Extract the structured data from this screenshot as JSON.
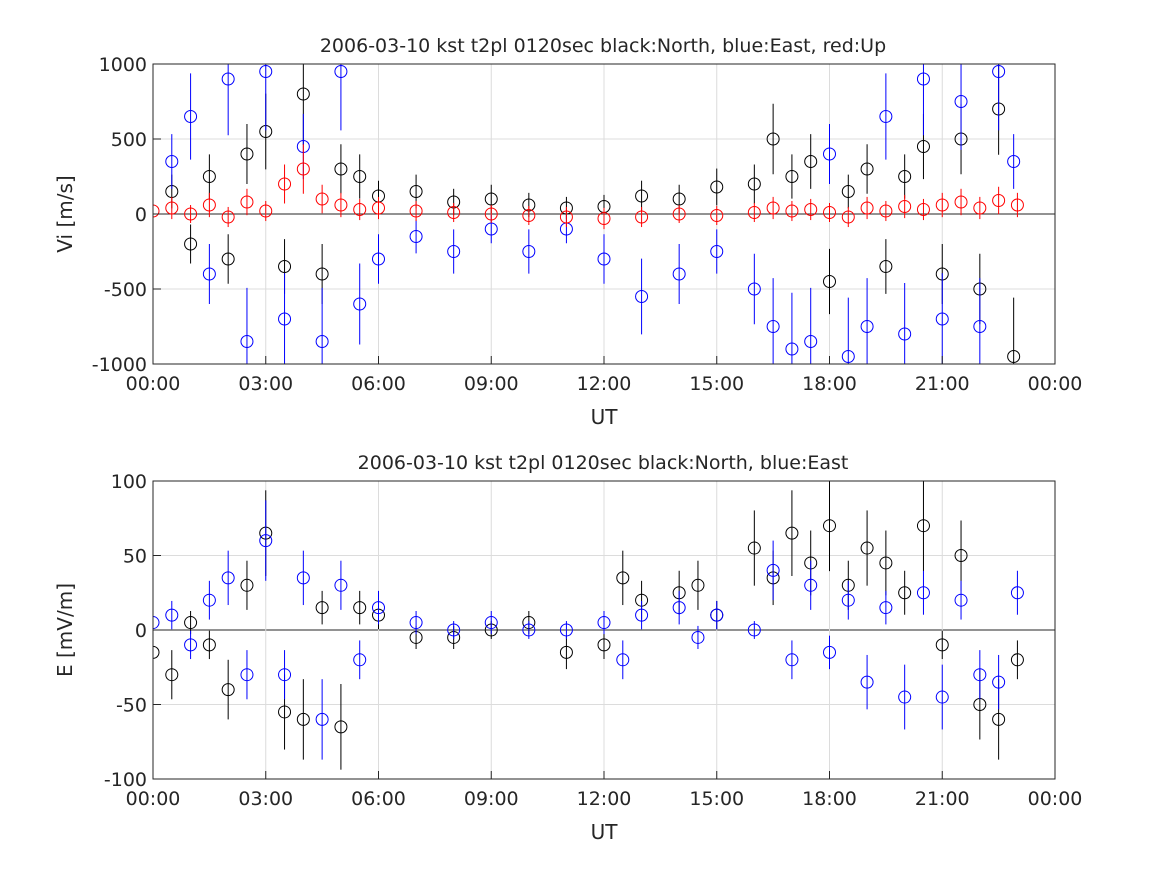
{
  "chart_data": [
    {
      "type": "scatter",
      "title": "2006-03-10 kst t2pl 0120sec black:North, blue:East, red:Up",
      "xlabel": "UT",
      "ylabel": "Vi [m/s]",
      "xlim": [
        "00:00",
        "24:00"
      ],
      "ylim": [
        -1000,
        1000
      ],
      "x_ticks": [
        "00:00",
        "03:00",
        "06:00",
        "09:00",
        "12:00",
        "15:00",
        "18:00",
        "21:00",
        "00:00"
      ],
      "y_ticks": [
        "1000",
        "500",
        "0",
        "-500",
        "-1000"
      ],
      "grid": true,
      "marker": "open-circle with vertical error bars",
      "colors": {
        "North": "#000000",
        "East": "#0000ff",
        "Up": "#ff0000"
      },
      "series": [
        {
          "name": "North",
          "x_hours": [
            0.5,
            1.0,
            1.5,
            2.0,
            2.5,
            3.0,
            3.5,
            4.0,
            4.5,
            5.0,
            5.5,
            6.0,
            7.0,
            8.0,
            9.0,
            10.0,
            11.0,
            12.0,
            13.0,
            14.0,
            15.0,
            16.0,
            16.5,
            17.0,
            17.5,
            18.0,
            18.5,
            19.0,
            19.5,
            20.0,
            20.5,
            21.0,
            21.5,
            22.0,
            22.5,
            22.9
          ],
          "values": [
            150,
            -200,
            250,
            -300,
            400,
            550,
            -350,
            800,
            -400,
            300,
            250,
            120,
            150,
            80,
            100,
            60,
            40,
            50,
            120,
            100,
            180,
            200,
            500,
            250,
            350,
            -450,
            150,
            300,
            -350,
            250,
            450,
            -400,
            500,
            -500,
            700,
            -950
          ]
        },
        {
          "name": "East",
          "x_hours": [
            0.5,
            1.0,
            1.5,
            2.0,
            2.5,
            3.0,
            3.5,
            4.0,
            4.5,
            5.0,
            5.5,
            6.0,
            7.0,
            8.0,
            9.0,
            10.0,
            11.0,
            12.0,
            13.0,
            14.0,
            15.0,
            16.0,
            16.5,
            17.0,
            17.5,
            18.0,
            18.5,
            19.0,
            19.5,
            20.0,
            20.5,
            21.0,
            21.5,
            22.0,
            22.5,
            22.9
          ],
          "values": [
            350,
            650,
            -400,
            900,
            -850,
            950,
            -700,
            450,
            -850,
            950,
            -600,
            -300,
            -150,
            -250,
            -100,
            -250,
            -100,
            -300,
            -550,
            -400,
            -250,
            -500,
            -750,
            -900,
            -850,
            400,
            -950,
            -750,
            650,
            -800,
            900,
            -700,
            750,
            -750,
            950,
            350
          ]
        },
        {
          "name": "Up",
          "x_hours": [
            0.0,
            0.5,
            1.0,
            1.5,
            2.0,
            2.5,
            3.0,
            3.5,
            4.0,
            4.5,
            5.0,
            5.5,
            6.0,
            7.0,
            8.0,
            9.0,
            10.0,
            11.0,
            12.0,
            13.0,
            14.0,
            15.0,
            16.0,
            16.5,
            17.0,
            17.5,
            18.0,
            18.5,
            19.0,
            19.5,
            20.0,
            20.5,
            21.0,
            21.5,
            22.0,
            22.5,
            23.0
          ],
          "values": [
            20,
            40,
            0,
            60,
            -20,
            80,
            20,
            200,
            300,
            100,
            60,
            30,
            40,
            20,
            10,
            0,
            -10,
            -20,
            -30,
            -20,
            0,
            -10,
            10,
            40,
            20,
            30,
            10,
            -20,
            40,
            20,
            50,
            30,
            60,
            80,
            40,
            90,
            60
          ]
        }
      ]
    },
    {
      "type": "scatter",
      "title": "2006-03-10 kst t2pl 0120sec black:North, blue:East",
      "xlabel": "UT",
      "ylabel": "E [mV/m]",
      "xlim": [
        "00:00",
        "24:00"
      ],
      "ylim": [
        -100,
        100
      ],
      "x_ticks": [
        "00:00",
        "03:00",
        "06:00",
        "09:00",
        "12:00",
        "15:00",
        "18:00",
        "21:00",
        "00:00"
      ],
      "y_ticks": [
        "100",
        "50",
        "0",
        "-50",
        "-100"
      ],
      "grid": true,
      "marker": "open-circle with vertical error bars",
      "colors": {
        "North": "#000000",
        "East": "#0000ff"
      },
      "series": [
        {
          "name": "North",
          "x_hours": [
            0.0,
            0.5,
            1.0,
            1.5,
            2.0,
            2.5,
            3.0,
            3.5,
            4.0,
            4.5,
            5.0,
            5.5,
            6.0,
            7.0,
            8.0,
            9.0,
            10.0,
            11.0,
            12.0,
            12.5,
            13.0,
            14.0,
            14.5,
            15.0,
            16.0,
            16.5,
            17.0,
            17.5,
            18.0,
            18.5,
            19.0,
            19.5,
            20.0,
            20.5,
            21.0,
            21.5,
            22.0,
            22.5,
            23.0
          ],
          "values": [
            -15,
            -30,
            5,
            -10,
            -40,
            30,
            65,
            -55,
            -60,
            15,
            -65,
            15,
            10,
            -5,
            -5,
            0,
            5,
            -15,
            -10,
            35,
            20,
            25,
            30,
            10,
            55,
            35,
            65,
            45,
            70,
            30,
            55,
            45,
            25,
            70,
            -10,
            50,
            -50,
            -60,
            -20
          ]
        },
        {
          "name": "East",
          "x_hours": [
            0.0,
            0.5,
            1.0,
            1.5,
            2.0,
            2.5,
            3.0,
            3.5,
            4.0,
            4.5,
            5.0,
            5.5,
            6.0,
            7.0,
            8.0,
            9.0,
            10.0,
            11.0,
            12.0,
            12.5,
            13.0,
            14.0,
            14.5,
            15.0,
            16.0,
            16.5,
            17.0,
            17.5,
            18.0,
            18.5,
            19.0,
            19.5,
            20.0,
            20.5,
            21.0,
            21.5,
            22.0,
            22.5,
            23.0
          ],
          "values": [
            5,
            10,
            -10,
            20,
            35,
            -30,
            60,
            -30,
            35,
            -60,
            30,
            -20,
            15,
            5,
            0,
            5,
            0,
            0,
            5,
            -20,
            10,
            15,
            -5,
            10,
            0,
            40,
            -20,
            30,
            -15,
            20,
            -35,
            15,
            -45,
            25,
            -45,
            20,
            -30,
            -35,
            25
          ]
        }
      ]
    }
  ]
}
